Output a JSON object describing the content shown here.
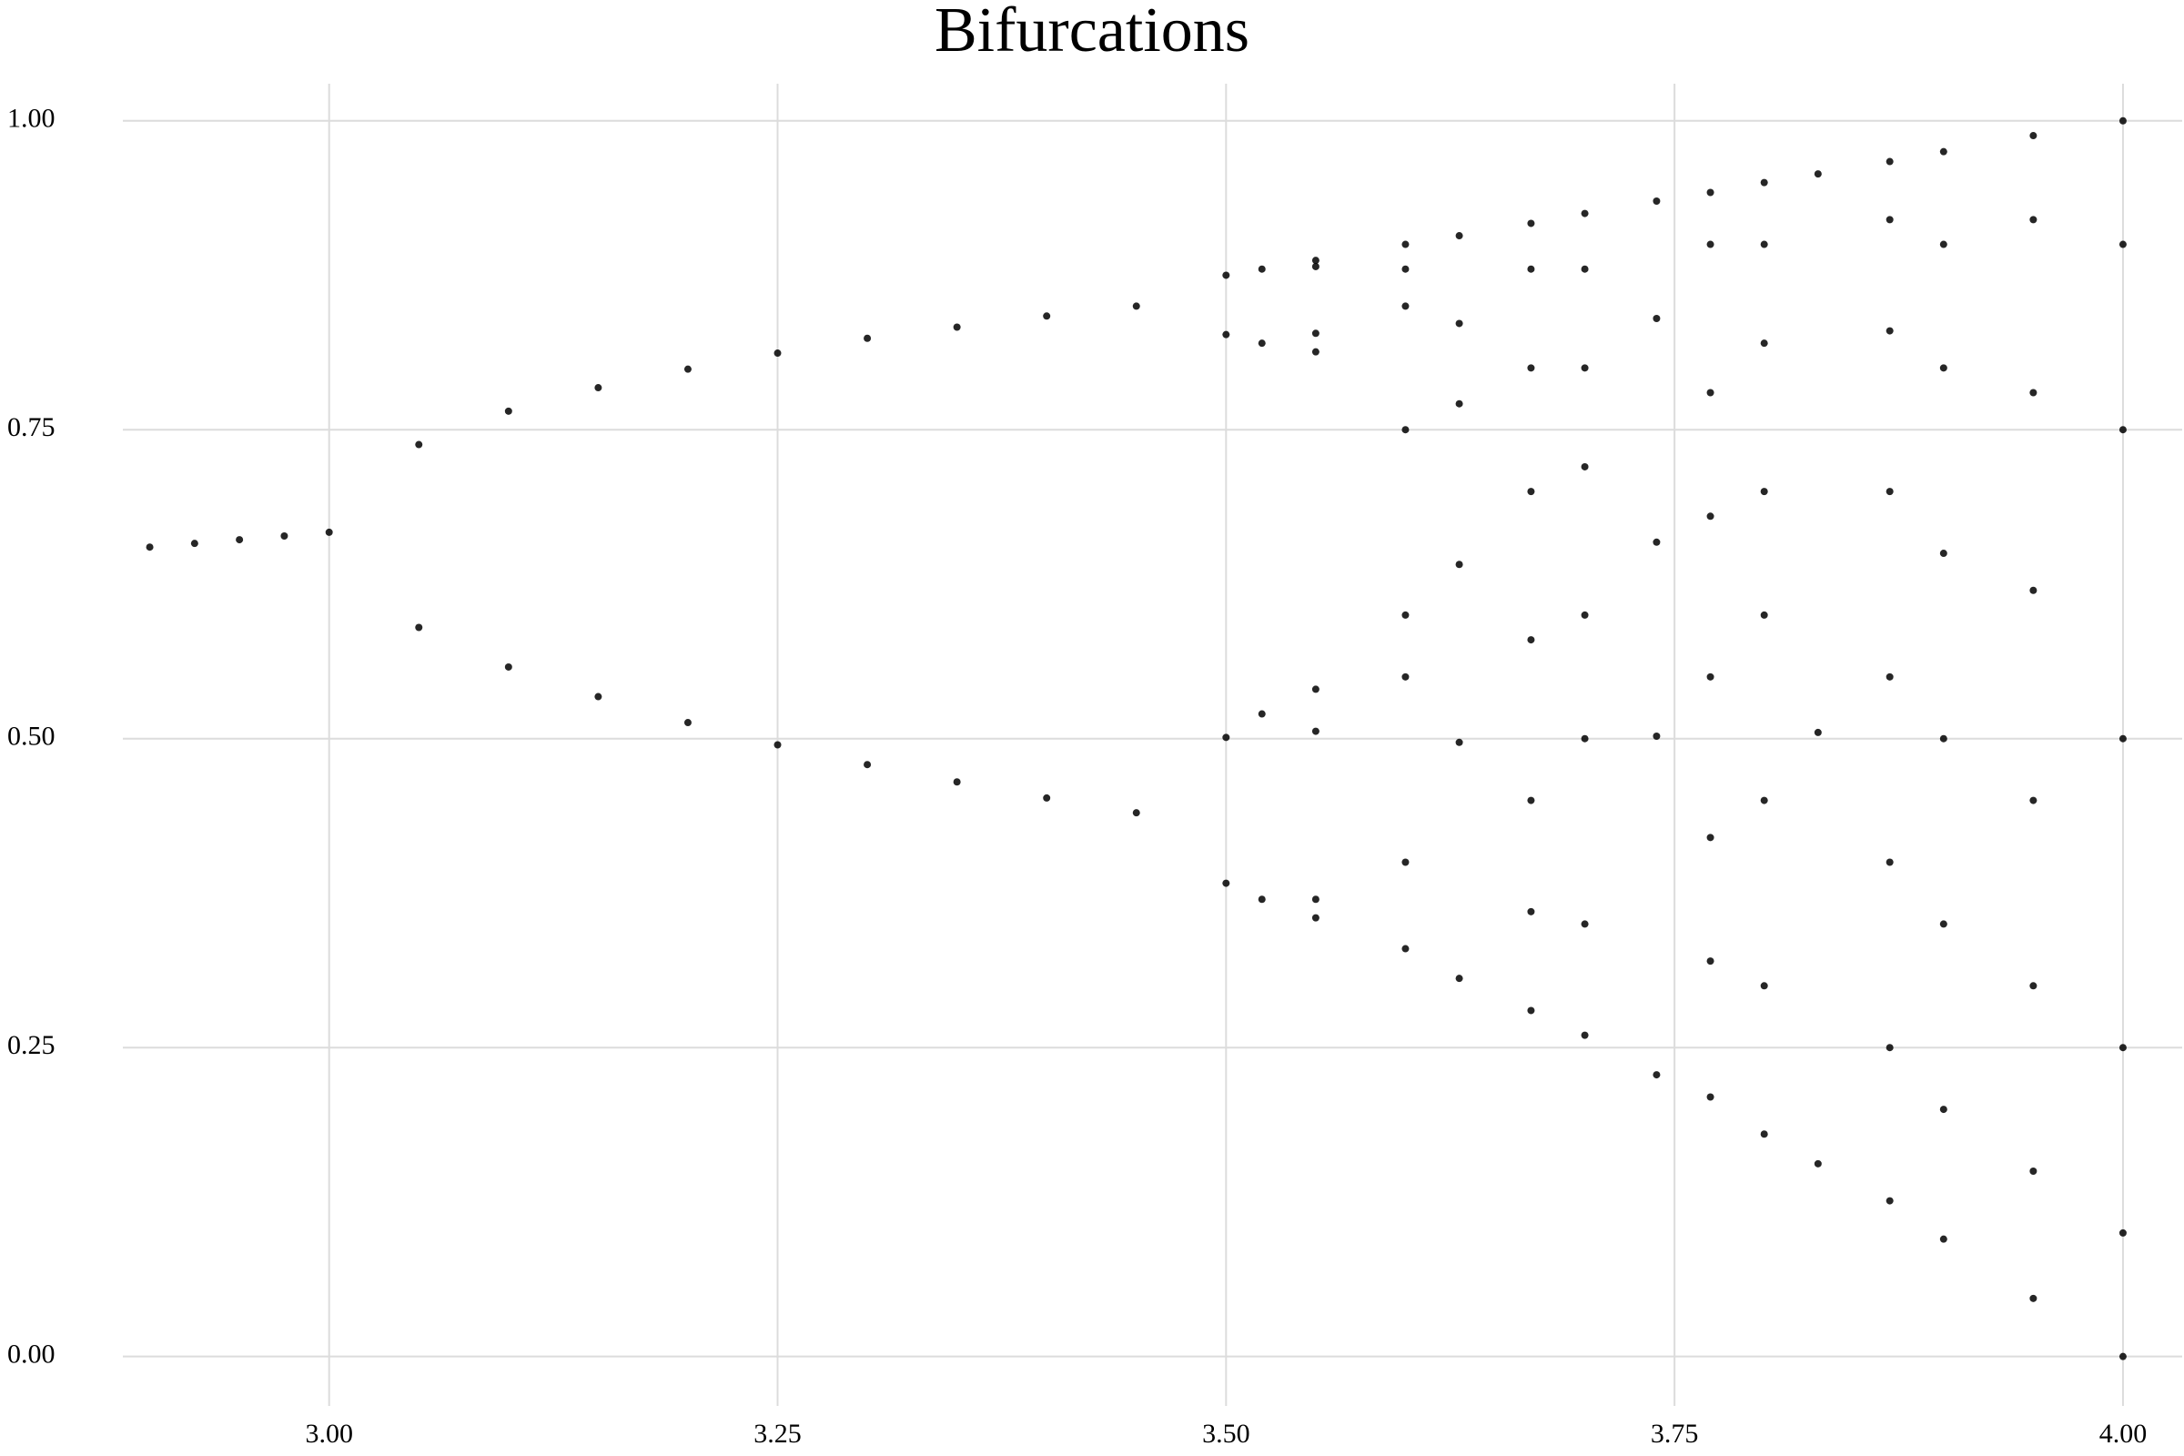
{
  "chart_data": {
    "type": "scatter",
    "title": "Bifurcations",
    "color": "#000000",
    "grid": true,
    "xlim": [
      2.885,
      4.033
    ],
    "ylim": [
      -0.04,
      1.03
    ],
    "xticks": [
      {
        "value": 3.0,
        "label": "3.00"
      },
      {
        "value": 3.25,
        "label": "3.25"
      },
      {
        "value": 3.5,
        "label": "3.50"
      },
      {
        "value": 3.75,
        "label": "3.75"
      },
      {
        "value": 4.0,
        "label": "4.00"
      }
    ],
    "yticks": [
      {
        "value": 0.0,
        "label": "0.00"
      },
      {
        "value": 0.25,
        "label": "0.25"
      },
      {
        "value": 0.5,
        "label": "0.50"
      },
      {
        "value": 0.75,
        "label": "0.75"
      },
      {
        "value": 1.0,
        "label": "1.00"
      }
    ],
    "x": [
      2.9,
      2.925,
      2.95,
      2.975,
      3.0,
      3.05,
      3.05,
      3.1,
      3.1,
      3.15,
      3.15,
      3.2,
      3.2,
      3.25,
      3.25,
      3.3,
      3.3,
      3.35,
      3.35,
      3.4,
      3.4,
      3.45,
      3.45,
      3.5,
      3.5,
      3.5,
      3.5,
      3.52,
      3.52,
      3.52,
      3.52,
      3.55,
      3.55,
      3.55,
      3.55,
      3.55,
      3.55,
      3.55,
      3.55,
      3.6,
      3.6,
      3.6,
      3.6,
      3.6,
      3.6,
      3.6,
      3.6,
      3.63,
      3.63,
      3.63,
      3.63,
      3.63,
      3.63,
      3.67,
      3.67,
      3.67,
      3.67,
      3.67,
      3.67,
      3.67,
      3.67,
      3.7,
      3.7,
      3.7,
      3.7,
      3.7,
      3.7,
      3.7,
      3.7,
      3.74,
      3.74,
      3.74,
      3.74,
      3.74,
      3.77,
      3.77,
      3.77,
      3.77,
      3.77,
      3.77,
      3.77,
      3.77,
      3.8,
      3.8,
      3.8,
      3.8,
      3.8,
      3.8,
      3.8,
      3.8,
      3.83,
      3.83,
      3.83,
      3.87,
      3.87,
      3.87,
      3.87,
      3.87,
      3.87,
      3.87,
      3.87,
      3.9,
      3.9,
      3.9,
      3.9,
      3.9,
      3.9,
      3.9,
      3.9,
      3.95,
      3.95,
      3.95,
      3.95,
      3.95,
      3.95,
      3.95,
      3.95,
      4.0,
      4.0,
      4.0,
      4.0,
      4.0,
      4.0,
      4.0
    ],
    "values": [
      0.655,
      0.658,
      0.661,
      0.664,
      0.667,
      0.738,
      0.59,
      0.765,
      0.558,
      0.784,
      0.534,
      0.799,
      0.513,
      0.812,
      0.495,
      0.824,
      0.479,
      0.833,
      0.465,
      0.842,
      0.452,
      0.85,
      0.44,
      0.875,
      0.383,
      0.827,
      0.501,
      0.88,
      0.37,
      0.82,
      0.52,
      0.887,
      0.355,
      0.813,
      0.54,
      0.882,
      0.37,
      0.828,
      0.506,
      0.9,
      0.33,
      0.4,
      0.55,
      0.6,
      0.75,
      0.85,
      0.88,
      0.907,
      0.306,
      0.771,
      0.641,
      0.836,
      0.497,
      0.917,
      0.28,
      0.36,
      0.45,
      0.58,
      0.7,
      0.8,
      0.88,
      0.925,
      0.26,
      0.35,
      0.5,
      0.6,
      0.72,
      0.8,
      0.88,
      0.935,
      0.228,
      0.659,
      0.84,
      0.502,
      0.942,
      0.21,
      0.32,
      0.42,
      0.55,
      0.68,
      0.78,
      0.9,
      0.95,
      0.18,
      0.3,
      0.45,
      0.6,
      0.7,
      0.82,
      0.9,
      0.957,
      0.156,
      0.505,
      0.967,
      0.126,
      0.25,
      0.4,
      0.55,
      0.7,
      0.83,
      0.92,
      0.975,
      0.095,
      0.2,
      0.35,
      0.5,
      0.65,
      0.8,
      0.9,
      0.988,
      0.047,
      0.15,
      0.3,
      0.45,
      0.62,
      0.78,
      0.92,
      1.0,
      0.0,
      0.1,
      0.25,
      0.5,
      0.75,
      0.9
    ]
  }
}
